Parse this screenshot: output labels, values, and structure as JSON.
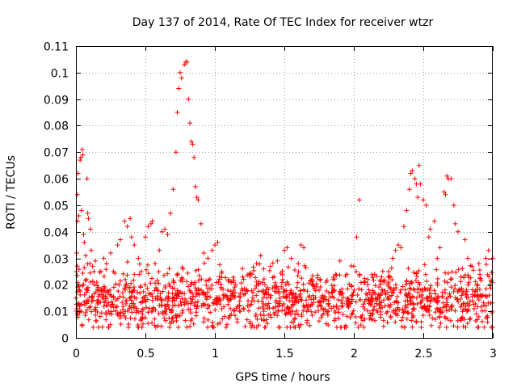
{
  "chart_data": {
    "type": "scatter",
    "title": "Day 137 of 2014, Rate Of TEC Index for receiver wtzr",
    "xlabel": "GPS time / hours",
    "ylabel": "ROTI / TECUs",
    "xlim": [
      0,
      3
    ],
    "ylim": [
      0,
      0.11
    ],
    "xticks": [
      0,
      0.5,
      1,
      1.5,
      2,
      2.5,
      3
    ],
    "xtick_labels": [
      "0",
      "0.5",
      "1",
      "1.5",
      "2",
      "2.5",
      "3"
    ],
    "yticks": [
      0,
      0.01,
      0.02,
      0.03,
      0.04,
      0.05,
      0.06,
      0.07,
      0.08,
      0.09,
      0.1,
      0.11
    ],
    "ytick_labels": [
      "0",
      "0.01",
      "0.02",
      "0.03",
      "0.04",
      "0.05",
      "0.06",
      "0.07",
      "0.08",
      "0.09",
      "0.1",
      "0.11"
    ],
    "grid": true,
    "marker": "+",
    "color": "#ff0000",
    "series": [
      {
        "name": "wtzr",
        "points": [
          [
            0.0,
            0.015
          ],
          [
            0.005,
            0.032
          ],
          [
            0.01,
            0.054
          ],
          [
            0.012,
            0.044
          ],
          [
            0.015,
            0.062
          ],
          [
            0.02,
            0.046
          ],
          [
            0.025,
            0.012
          ],
          [
            0.03,
            0.067
          ],
          [
            0.035,
            0.068
          ],
          [
            0.04,
            0.048
          ],
          [
            0.045,
            0.071
          ],
          [
            0.05,
            0.069
          ],
          [
            0.055,
            0.039
          ],
          [
            0.06,
            0.036
          ],
          [
            0.07,
            0.031
          ],
          [
            0.075,
            0.022
          ],
          [
            0.08,
            0.06
          ],
          [
            0.085,
            0.047
          ],
          [
            0.09,
            0.045
          ],
          [
            0.1,
            0.028
          ],
          [
            0.105,
            0.041
          ],
          [
            0.11,
            0.033
          ],
          [
            0.12,
            0.027
          ],
          [
            0.13,
            0.025
          ],
          [
            0.14,
            0.029
          ],
          [
            0.15,
            0.021
          ],
          [
            0.16,
            0.019
          ],
          [
            0.18,
            0.025
          ],
          [
            0.2,
            0.03
          ],
          [
            0.22,
            0.028
          ],
          [
            0.25,
            0.032
          ],
          [
            0.27,
            0.025
          ],
          [
            0.3,
            0.035
          ],
          [
            0.31,
            0.02
          ],
          [
            0.32,
            0.037
          ],
          [
            0.35,
            0.044
          ],
          [
            0.37,
            0.042
          ],
          [
            0.39,
            0.045
          ],
          [
            0.4,
            0.038
          ],
          [
            0.42,
            0.035
          ],
          [
            0.45,
            0.03
          ],
          [
            0.47,
            0.025
          ],
          [
            0.5,
            0.038
          ],
          [
            0.52,
            0.042
          ],
          [
            0.54,
            0.043
          ],
          [
            0.55,
            0.044
          ],
          [
            0.57,
            0.028
          ],
          [
            0.6,
            0.033
          ],
          [
            0.62,
            0.04
          ],
          [
            0.64,
            0.041
          ],
          [
            0.66,
            0.039
          ],
          [
            0.68,
            0.047
          ],
          [
            0.7,
            0.056
          ],
          [
            0.72,
            0.07
          ],
          [
            0.73,
            0.085
          ],
          [
            0.74,
            0.094
          ],
          [
            0.75,
            0.1
          ],
          [
            0.76,
            0.098
          ],
          [
            0.78,
            0.103
          ],
          [
            0.79,
            0.104
          ],
          [
            0.8,
            0.104
          ],
          [
            0.81,
            0.09
          ],
          [
            0.82,
            0.081
          ],
          [
            0.83,
            0.074
          ],
          [
            0.84,
            0.073
          ],
          [
            0.85,
            0.068
          ],
          [
            0.86,
            0.057
          ],
          [
            0.87,
            0.053
          ],
          [
            0.88,
            0.052
          ],
          [
            0.9,
            0.043
          ],
          [
            0.92,
            0.032
          ],
          [
            0.95,
            0.03
          ],
          [
            0.98,
            0.033
          ],
          [
            1.0,
            0.035
          ],
          [
            1.02,
            0.036
          ],
          [
            1.05,
            0.025
          ],
          [
            1.1,
            0.022
          ],
          [
            1.15,
            0.02
          ],
          [
            1.2,
            0.023
          ],
          [
            1.25,
            0.024
          ],
          [
            1.3,
            0.028
          ],
          [
            1.33,
            0.031
          ],
          [
            1.35,
            0.026
          ],
          [
            1.4,
            0.027
          ],
          [
            1.45,
            0.029
          ],
          [
            1.5,
            0.033
          ],
          [
            1.52,
            0.034
          ],
          [
            1.55,
            0.03
          ],
          [
            1.6,
            0.028
          ],
          [
            1.62,
            0.035
          ],
          [
            1.64,
            0.034
          ],
          [
            1.7,
            0.02
          ],
          [
            1.75,
            0.018
          ],
          [
            1.8,
            0.021
          ],
          [
            1.85,
            0.022
          ],
          [
            1.9,
            0.029
          ],
          [
            1.95,
            0.024
          ],
          [
            2.0,
            0.027
          ],
          [
            2.02,
            0.038
          ],
          [
            2.04,
            0.052
          ],
          [
            2.1,
            0.022
          ],
          [
            2.15,
            0.024
          ],
          [
            2.2,
            0.023
          ],
          [
            2.25,
            0.025
          ],
          [
            2.28,
            0.03
          ],
          [
            2.3,
            0.033
          ],
          [
            2.32,
            0.035
          ],
          [
            2.34,
            0.034
          ],
          [
            2.36,
            0.042
          ],
          [
            2.38,
            0.048
          ],
          [
            2.4,
            0.056
          ],
          [
            2.41,
            0.062
          ],
          [
            2.42,
            0.063
          ],
          [
            2.44,
            0.06
          ],
          [
            2.45,
            0.058
          ],
          [
            2.46,
            0.053
          ],
          [
            2.47,
            0.065
          ],
          [
            2.48,
            0.058
          ],
          [
            2.5,
            0.052
          ],
          [
            2.52,
            0.05
          ],
          [
            2.54,
            0.038
          ],
          [
            2.55,
            0.041
          ],
          [
            2.58,
            0.044
          ],
          [
            2.6,
            0.03
          ],
          [
            2.62,
            0.034
          ],
          [
            2.65,
            0.055
          ],
          [
            2.66,
            0.054
          ],
          [
            2.67,
            0.061
          ],
          [
            2.68,
            0.06
          ],
          [
            2.7,
            0.06
          ],
          [
            2.72,
            0.05
          ],
          [
            2.73,
            0.043
          ],
          [
            2.75,
            0.04
          ],
          [
            2.8,
            0.037
          ],
          [
            2.82,
            0.03
          ],
          [
            2.85,
            0.027
          ],
          [
            2.9,
            0.028
          ],
          [
            2.95,
            0.03
          ],
          [
            2.97,
            0.033
          ],
          [
            3.0,
            0.03
          ]
        ]
      }
    ],
    "dense_band": {
      "description_note": "dense cluster of values within x 0-3 h, roughly 0.005-0.025 TECU",
      "x_range": [
        0,
        3
      ],
      "y_center": 0.0145,
      "y_spread": 0.0055,
      "count": 1400
    }
  }
}
